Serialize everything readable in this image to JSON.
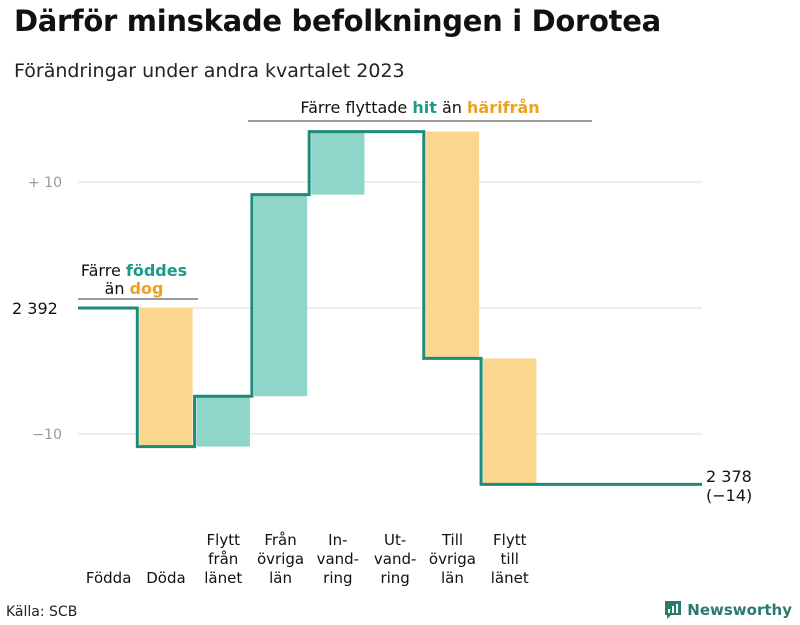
{
  "header": {
    "title": "Därför minskade befolkningen i Dorotea",
    "subtitle": "Förändringar under andra kvartalet 2023"
  },
  "footer": {
    "source": "Källa: SCB",
    "brand": "Newsworthy"
  },
  "colors": {
    "accent_teal": "#1a9a8a",
    "teal_fill": "#8fd5c9",
    "orange_fill": "#fbd68e",
    "orange_text": "#f0a020",
    "line": "#1d8a7a",
    "grid": "#dddddd"
  },
  "annotations": {
    "births": {
      "pre": "Färre ",
      "hl1": "föddes",
      "line2_pre": "än ",
      "hl2": "dog"
    },
    "moves": {
      "pre": "Färre flyttade ",
      "hl1": "hit",
      "mid": " än ",
      "hl2": "härifrån"
    }
  },
  "chart_data": {
    "type": "waterfall",
    "start_value": 2392,
    "start_label": "2 392",
    "end_value": 2378,
    "end_label": "2 378",
    "change_label": "(−14)",
    "y_ticks": [
      {
        "value": 10,
        "label": "+  10"
      },
      {
        "value": 0,
        "label": ""
      },
      {
        "value": -10,
        "label": "−10"
      }
    ],
    "ylim": [
      -14,
      14
    ],
    "steps": [
      {
        "label": [
          "Födda"
        ],
        "delta": 0,
        "type": "in"
      },
      {
        "label": [
          "Döda"
        ],
        "delta": -11,
        "type": "out"
      },
      {
        "label": [
          "Flytt",
          "från",
          "länet"
        ],
        "delta": 4,
        "type": "in"
      },
      {
        "label": [
          "Från",
          "övriga",
          "län"
        ],
        "delta": 16,
        "type": "in"
      },
      {
        "label": [
          "In-",
          "vand-",
          "ring"
        ],
        "delta": 5,
        "type": "in"
      },
      {
        "label": [
          "Ut-",
          "vand-",
          "ring"
        ],
        "delta": 0,
        "type": "out"
      },
      {
        "label": [
          "Till",
          "övriga",
          "län"
        ],
        "delta": -18,
        "type": "out"
      },
      {
        "label": [
          "Flytt",
          "till",
          "länet"
        ],
        "delta": -10,
        "type": "out"
      }
    ]
  }
}
